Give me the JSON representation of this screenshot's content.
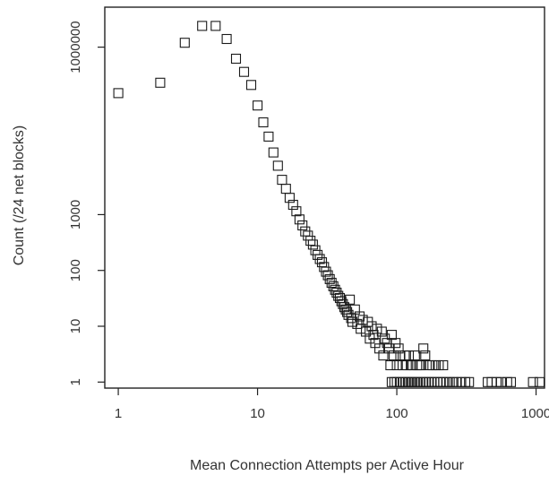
{
  "chart_data": {
    "type": "scatter",
    "title": "",
    "xlabel": "Mean Connection Attempts per Active Hour",
    "ylabel": "Count (/24 net blocks)",
    "x_scale": "log",
    "y_scale": "log",
    "xlim": [
      0.8,
      1150
    ],
    "ylim": [
      0.78,
      5200000
    ],
    "x_ticks": [
      {
        "value": 1,
        "label": "1"
      },
      {
        "value": 10,
        "label": "10"
      },
      {
        "value": 100,
        "label": "100"
      },
      {
        "value": 1000,
        "label": "1000"
      }
    ],
    "y_ticks": [
      {
        "value": 1,
        "label": "1"
      },
      {
        "value": 10,
        "label": "10"
      },
      {
        "value": 100,
        "label": "100"
      },
      {
        "value": 1000,
        "label": "1000"
      },
      {
        "value": 1000000,
        "label": "1000000"
      }
    ],
    "grid": false,
    "legend": "none",
    "marker": "open-square",
    "series": [
      {
        "points": [
          [
            1,
            150000
          ],
          [
            2,
            230000
          ],
          [
            3,
            1200000
          ],
          [
            4,
            2400000
          ],
          [
            5,
            2400000
          ],
          [
            6,
            1400000
          ],
          [
            7,
            620000
          ],
          [
            8,
            360000
          ],
          [
            9,
            210000
          ],
          [
            10,
            90000
          ],
          [
            11,
            45000
          ],
          [
            12,
            25000
          ],
          [
            13,
            13000
          ],
          [
            14,
            7500
          ],
          [
            15,
            4200
          ],
          [
            16,
            2900
          ],
          [
            17,
            2000
          ],
          [
            18,
            1500
          ],
          [
            19,
            1150
          ],
          [
            20,
            820
          ],
          [
            21,
            640
          ],
          [
            22,
            500
          ],
          [
            23,
            420
          ],
          [
            24,
            340
          ],
          [
            25,
            290
          ],
          [
            26,
            230
          ],
          [
            27,
            190
          ],
          [
            28,
            160
          ],
          [
            29,
            140
          ],
          [
            30,
            115
          ],
          [
            31,
            95
          ],
          [
            32,
            82
          ],
          [
            33,
            70
          ],
          [
            34,
            60
          ],
          [
            35,
            52
          ],
          [
            36,
            45
          ],
          [
            37,
            40
          ],
          [
            38,
            35
          ],
          [
            39,
            32
          ],
          [
            40,
            28
          ],
          [
            41,
            25
          ],
          [
            42,
            22
          ],
          [
            43,
            20
          ],
          [
            44,
            18
          ],
          [
            45,
            16
          ],
          [
            46,
            30
          ],
          [
            47,
            14
          ],
          [
            48,
            12
          ],
          [
            50,
            20
          ],
          [
            52,
            11
          ],
          [
            54,
            15
          ],
          [
            55,
            9
          ],
          [
            57,
            13
          ],
          [
            60,
            8
          ],
          [
            62,
            12
          ],
          [
            64,
            6
          ],
          [
            66,
            10
          ],
          [
            68,
            7
          ],
          [
            70,
            5
          ],
          [
            72,
            9
          ],
          [
            75,
            4
          ],
          [
            78,
            8
          ],
          [
            80,
            3
          ],
          [
            82,
            6
          ],
          [
            85,
            5
          ],
          [
            88,
            4
          ],
          [
            90,
            2
          ],
          [
            92,
            7
          ],
          [
            95,
            3
          ],
          [
            98,
            5
          ],
          [
            100,
            2
          ],
          [
            103,
            4
          ],
          [
            106,
            3
          ],
          [
            110,
            2
          ],
          [
            114,
            3
          ],
          [
            118,
            2
          ],
          [
            122,
            3
          ],
          [
            126,
            2
          ],
          [
            130,
            2
          ],
          [
            135,
            3
          ],
          [
            140,
            2
          ],
          [
            145,
            2
          ],
          [
            150,
            2
          ],
          [
            155,
            4
          ],
          [
            160,
            3
          ],
          [
            170,
            2
          ],
          [
            180,
            2
          ],
          [
            190,
            2
          ],
          [
            200,
            2
          ],
          [
            215,
            2
          ],
          [
            92,
            1
          ],
          [
            96,
            1
          ],
          [
            100,
            1
          ],
          [
            105,
            1
          ],
          [
            110,
            1
          ],
          [
            115,
            1
          ],
          [
            120,
            1
          ],
          [
            125,
            1
          ],
          [
            130,
            1
          ],
          [
            136,
            1
          ],
          [
            142,
            1
          ],
          [
            148,
            1
          ],
          [
            155,
            1
          ],
          [
            162,
            1
          ],
          [
            170,
            1
          ],
          [
            178,
            1
          ],
          [
            186,
            1
          ],
          [
            195,
            1
          ],
          [
            205,
            1
          ],
          [
            215,
            1
          ],
          [
            228,
            1
          ],
          [
            240,
            1
          ],
          [
            255,
            1
          ],
          [
            270,
            1
          ],
          [
            290,
            1
          ],
          [
            310,
            1
          ],
          [
            330,
            1
          ],
          [
            450,
            1
          ],
          [
            480,
            1
          ],
          [
            520,
            1
          ],
          [
            560,
            1
          ],
          [
            620,
            1
          ],
          [
            660,
            1
          ],
          [
            950,
            1
          ],
          [
            1060,
            1
          ]
        ]
      }
    ]
  }
}
